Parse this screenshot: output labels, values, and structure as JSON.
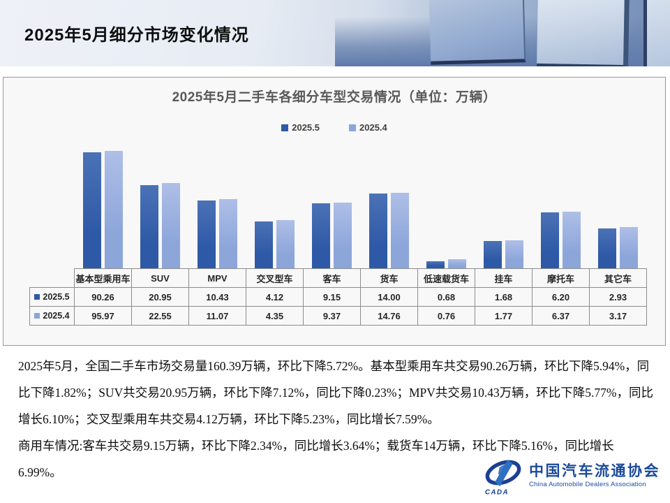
{
  "header": {
    "title": "2025年5月细分市场变化情况"
  },
  "chart_data": {
    "type": "bar",
    "title": "2025年5月二手车各细分车型交易情况（单位：万辆）",
    "unit": "万辆",
    "scale": "log",
    "axis_min": 0.5,
    "grid": false,
    "legend_position": "top",
    "data_table_shown": true,
    "categories": [
      "基本型乘用车",
      "SUV",
      "MPV",
      "交叉型车",
      "客车",
      "货车",
      "低速载货车",
      "挂车",
      "摩托车",
      "其它车"
    ],
    "series": [
      {
        "name": "2025.5",
        "color": "#2E59A6",
        "color_top": "#4B72B6",
        "values": [
          90.26,
          20.95,
          10.43,
          4.12,
          9.15,
          14.0,
          0.68,
          1.68,
          6.2,
          2.93
        ]
      },
      {
        "name": "2025.4",
        "color": "#8DA6DA",
        "color_top": "#AEBFE7",
        "values": [
          95.97,
          22.55,
          11.07,
          4.35,
          9.37,
          14.76,
          0.76,
          1.77,
          6.37,
          3.17
        ]
      }
    ]
  },
  "body": {
    "paragraph1": "2025年5月，全国二手车市场交易量160.39万辆，环比下降5.72%。基本型乘用车共交易90.26万辆，环比下降5.94%，同比下降1.82%；SUV共交易20.95万辆，环比下降7.12%，同比下降0.23%；MPV共交易10.43万辆，环比下降5.77%，同比增长6.10%；交叉型乘用车共交易4.12万辆，环比下降5.23%，同比增长7.59%。",
    "paragraph2": "商用车情况:客车共交易9.15万辆，环比下降2.34%，同比增长3.64%；载货车14万辆，环比下降5.16%，同比增长6.99%。"
  },
  "logo": {
    "name_cn": "中国汽车流通协会",
    "name_en": "China Automobile Dealers Association",
    "acronym": "CADA",
    "color": "#1B4A9B"
  }
}
